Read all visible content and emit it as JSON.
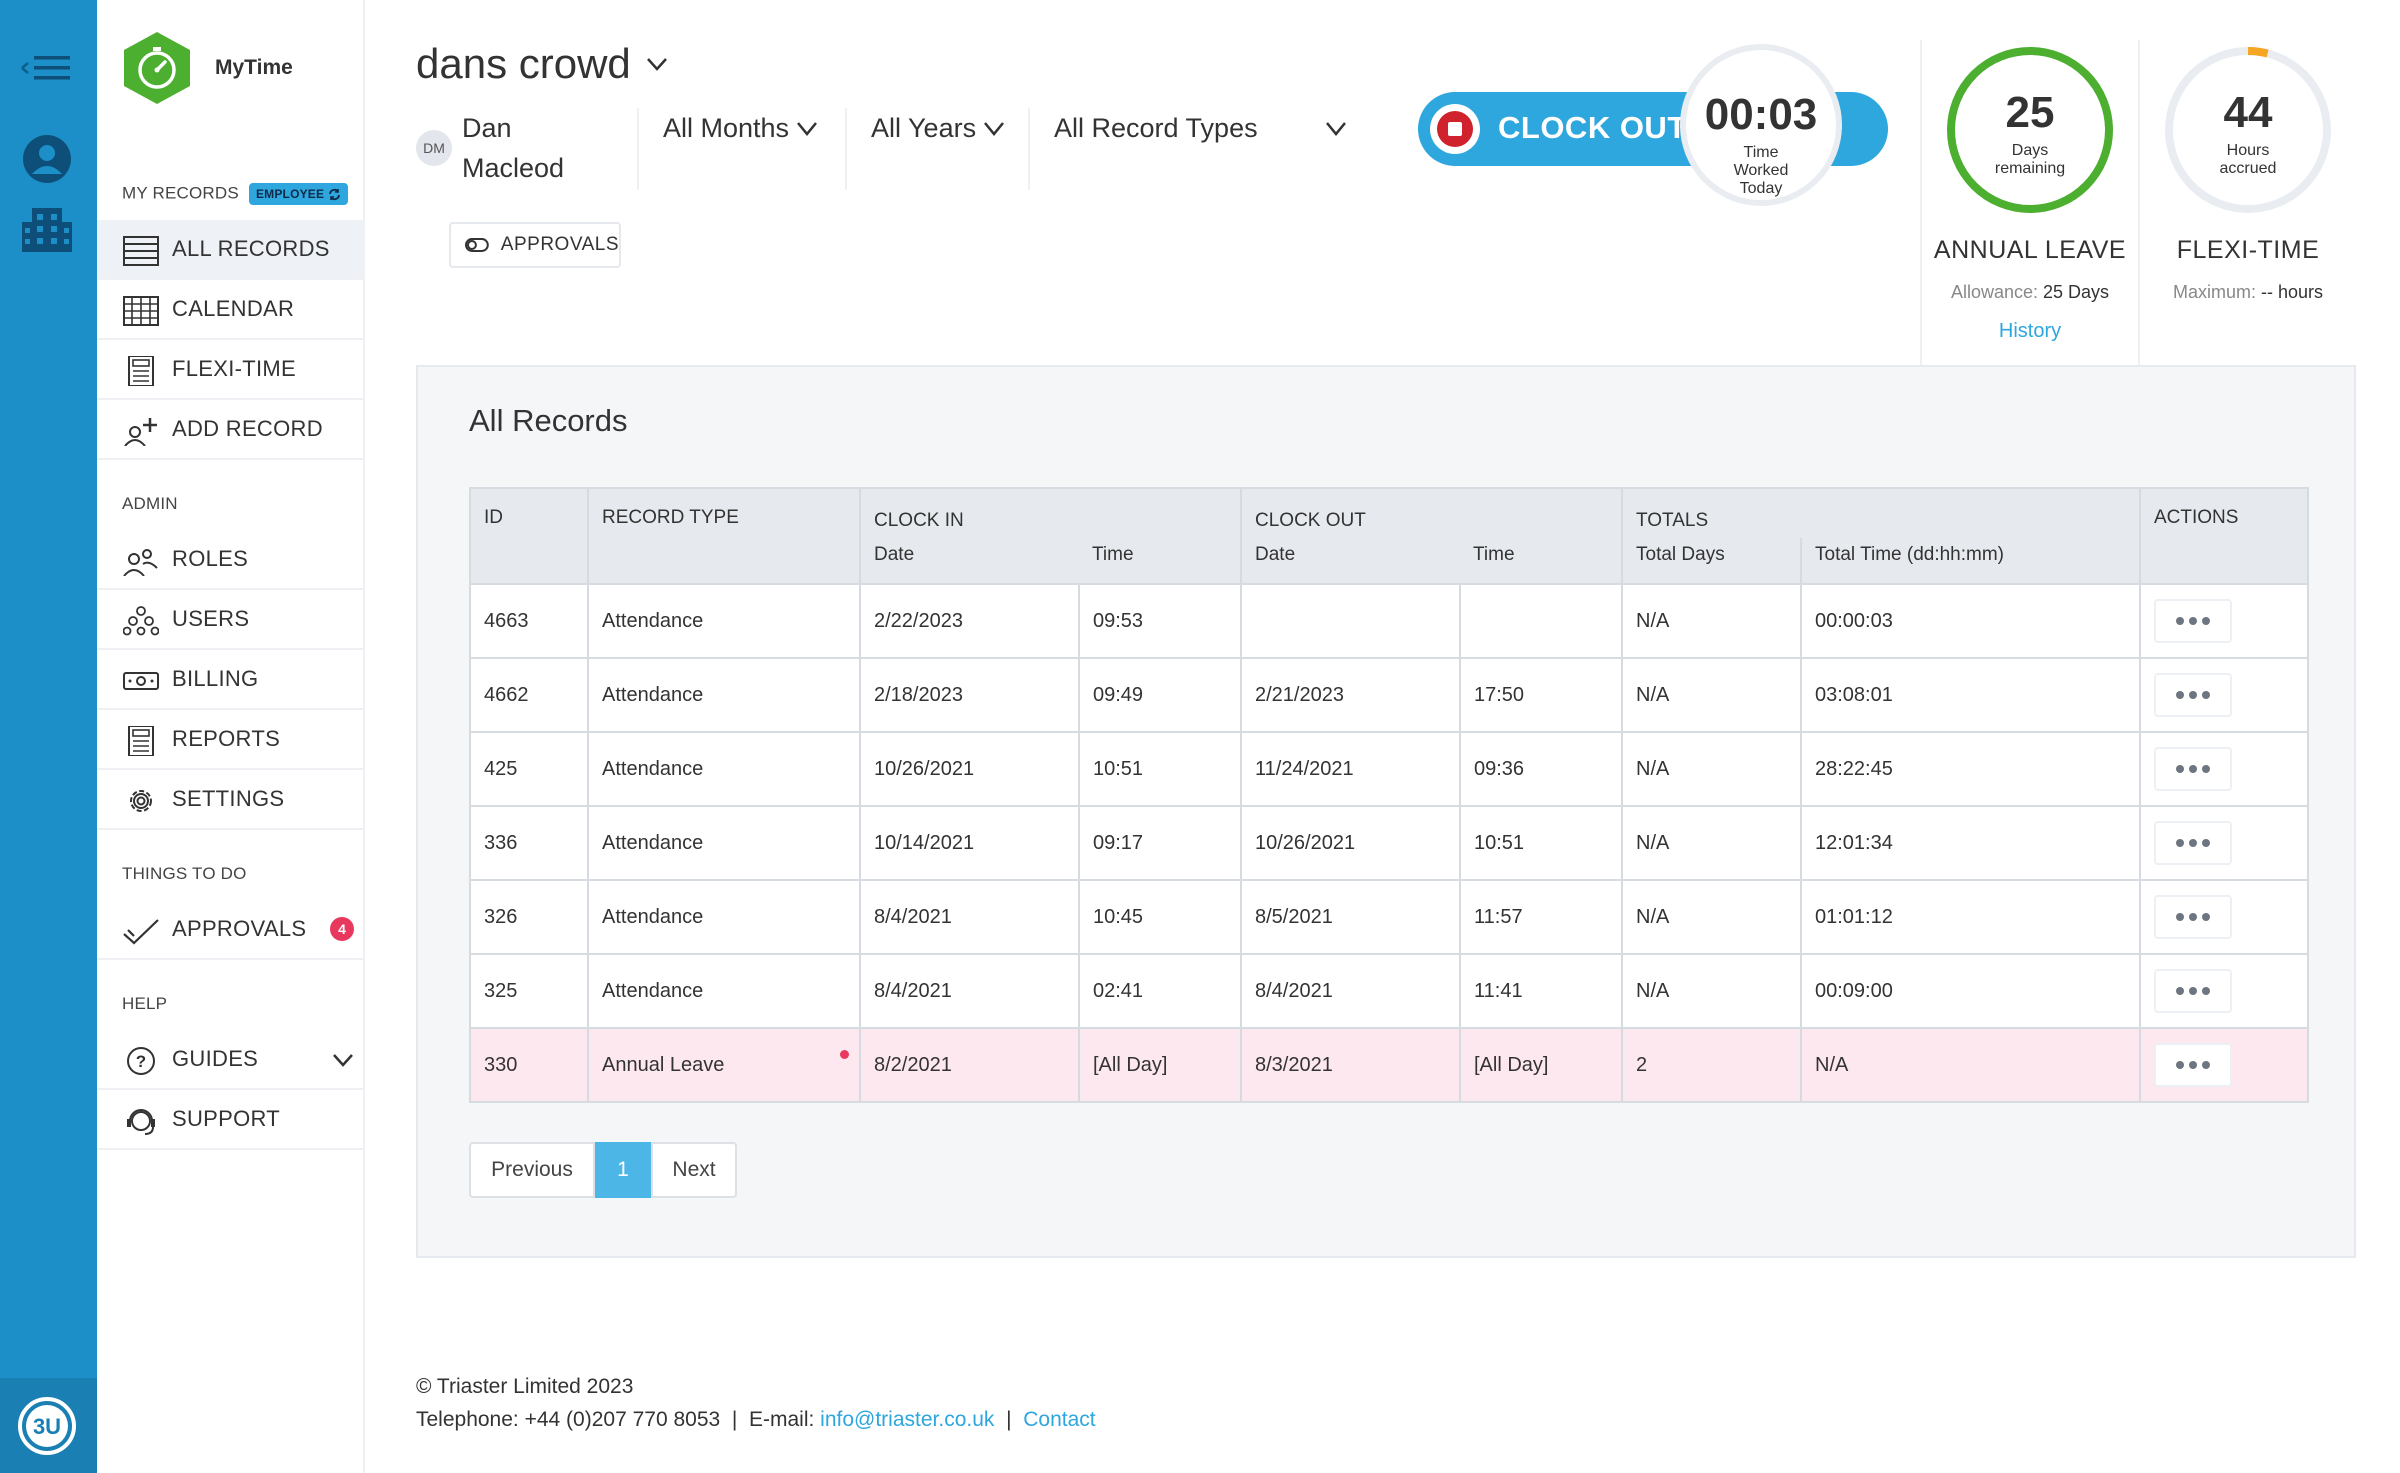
{
  "app": {
    "name": "MyTime"
  },
  "sidebar": {
    "my_records_label": "MY RECORDS",
    "employee_badge": "EMPLOYEE",
    "items": [
      {
        "label": "ALL RECORDS",
        "icon": "list-icon"
      },
      {
        "label": "CALENDAR",
        "icon": "calendar-icon"
      },
      {
        "label": "FLEXI-TIME",
        "icon": "flexi-icon"
      },
      {
        "label": "ADD RECORD",
        "icon": "add-user-icon"
      }
    ],
    "admin_label": "ADMIN",
    "admin_items": [
      {
        "label": "ROLES",
        "icon": "roles-icon"
      },
      {
        "label": "USERS",
        "icon": "users-icon"
      },
      {
        "label": "BILLING",
        "icon": "money-icon"
      },
      {
        "label": "REPORTS",
        "icon": "report-icon"
      },
      {
        "label": "SETTINGS",
        "icon": "gear-icon"
      }
    ],
    "todo_label": "THINGS TO DO",
    "approvals_label": "APPROVALS",
    "approvals_count": "4",
    "help_label": "HELP",
    "guides_label": "GUIDES",
    "support_label": "SUPPORT"
  },
  "rail": {
    "logo_text": "3U"
  },
  "header": {
    "org_name": "dans crowd",
    "user_initials": "DM",
    "user_name": "Dan Macleod",
    "filter_months": "All Months",
    "filter_years": "All Years",
    "filter_types": "All Record Types",
    "approvals_button": "APPROVALS"
  },
  "clock": {
    "button_label": "CLOCK OUT",
    "time": "00:03",
    "sub": "Time Worked Today"
  },
  "annual_leave": {
    "value": "25",
    "sub": "Days remaining",
    "title": "ANNUAL LEAVE",
    "allowance_label": "Allowance:",
    "allowance_value": "25 Days",
    "history_link": "History",
    "progress": 1.0
  },
  "flexi": {
    "value": "44",
    "sub": "Hours accrued",
    "title": "FLEXI-TIME",
    "max_label": "Maximum:",
    "max_value": "-- hours",
    "progress": 0.04
  },
  "records": {
    "title": "All Records",
    "headers": {
      "id": "ID",
      "record_type": "RECORD TYPE",
      "clock_in": "CLOCK IN",
      "clock_out": "CLOCK OUT",
      "totals": "TOTALS",
      "actions": "ACTIONS",
      "date": "Date",
      "time": "Time",
      "total_days": "Total Days",
      "total_time": "Total Time (dd:hh:mm)"
    },
    "rows": [
      {
        "id": "4663",
        "type": "Attendance",
        "in_date": "2/22/2023",
        "in_time": "09:53",
        "out_date": "",
        "out_time": "",
        "days": "N/A",
        "total": "00:00:03"
      },
      {
        "id": "4662",
        "type": "Attendance",
        "in_date": "2/18/2023",
        "in_time": "09:49",
        "out_date": "2/21/2023",
        "out_time": "17:50",
        "days": "N/A",
        "total": "03:08:01"
      },
      {
        "id": "425",
        "type": "Attendance",
        "in_date": "10/26/2021",
        "in_time": "10:51",
        "out_date": "11/24/2021",
        "out_time": "09:36",
        "days": "N/A",
        "total": "28:22:45"
      },
      {
        "id": "336",
        "type": "Attendance",
        "in_date": "10/14/2021",
        "in_time": "09:17",
        "out_date": "10/26/2021",
        "out_time": "10:51",
        "days": "N/A",
        "total": "12:01:34"
      },
      {
        "id": "326",
        "type": "Attendance",
        "in_date": "8/4/2021",
        "in_time": "10:45",
        "out_date": "8/5/2021",
        "out_time": "11:57",
        "days": "N/A",
        "total": "01:01:12"
      },
      {
        "id": "325",
        "type": "Attendance",
        "in_date": "8/4/2021",
        "in_time": "02:41",
        "out_date": "8/4/2021",
        "out_time": "11:41",
        "days": "N/A",
        "total": "00:09:00"
      },
      {
        "id": "330",
        "type": "Annual Leave",
        "in_date": "8/2/2021",
        "in_time": "[All Day]",
        "out_date": "8/3/2021",
        "out_time": "[All Day]",
        "days": "2",
        "total": "N/A"
      }
    ]
  },
  "pager": {
    "prev": "Previous",
    "current": "1",
    "next": "Next"
  },
  "footer": {
    "copyright": "© Triaster Limited 2023",
    "telephone": "Telephone: +44 (0)207 770 8053",
    "sep": "|",
    "email_label": "E-mail:",
    "email": "info@triaster.co.uk",
    "contact": "Contact"
  },
  "colors": {
    "accent": "#2ea6de",
    "rail": "#1c8fc9",
    "brand_green": "#4caf2f",
    "stop_red": "#d0222d",
    "badge_pink": "#e8385d",
    "leave_row": "#fde8ef"
  }
}
